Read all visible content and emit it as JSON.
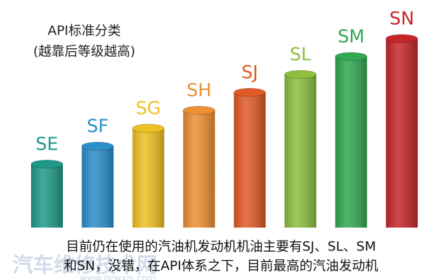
{
  "title": {
    "lines": [
      "API标准分类",
      "(越靠后等级越高)"
    ]
  },
  "grades": [
    "SE",
    "SF",
    "SG",
    "SH",
    "SJ",
    "SL",
    "SM",
    "SN"
  ],
  "caption": {
    "lines": [
      "目前仍在使用的汽油机发动机机油主要有SJ、SL、SM",
      "和SN，没错，在API体系之下，目前最高的汽油发动机"
    ]
  },
  "watermark": {
    "name": "汽车维修技术网",
    "url": "www.qcwxjs.com"
  }
}
